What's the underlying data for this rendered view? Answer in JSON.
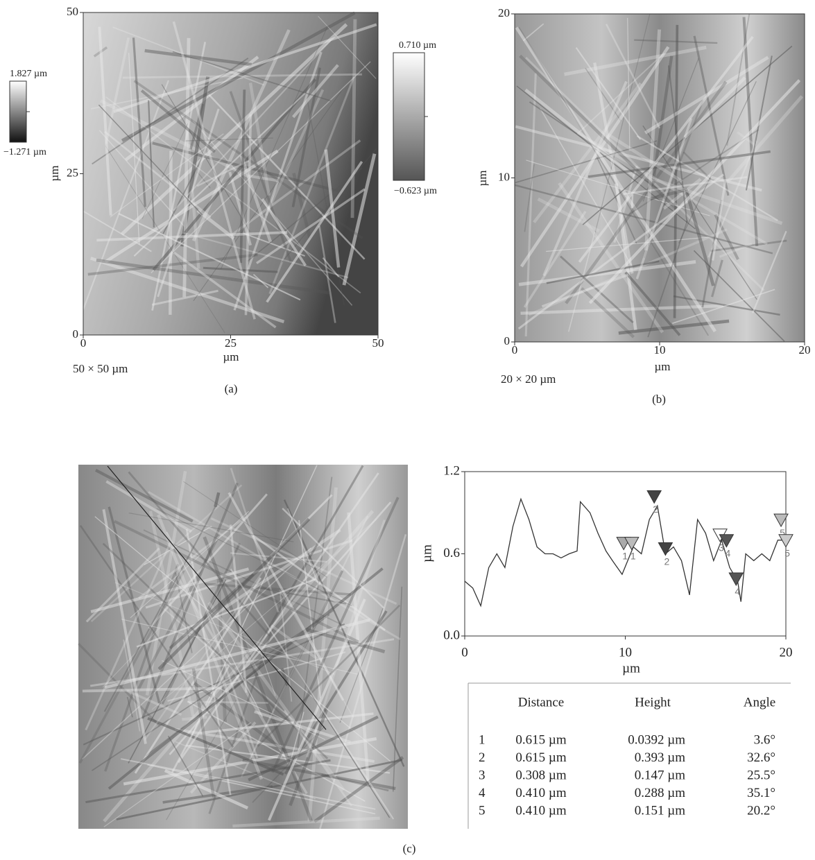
{
  "chart_data": [
    {
      "type": "image",
      "caption": "(a)",
      "scan_size": "50 × 50 µm",
      "xlabel": "µm",
      "ylabel": "µm",
      "xlim": [
        0,
        50
      ],
      "ylim": [
        0,
        50
      ],
      "xticks": [
        0,
        25,
        50
      ],
      "yticks": [
        0,
        25,
        50
      ],
      "colorbar_max": "1.827 µm",
      "colorbar_min": "−1.271 µm"
    },
    {
      "type": "image",
      "caption": "(b)",
      "scan_size": "20 × 20 µm",
      "xlabel": "µm",
      "ylabel": "µm",
      "xlim": [
        0,
        20
      ],
      "ylim": [
        0,
        20
      ],
      "xticks": [
        0,
        10,
        20
      ],
      "yticks": [
        0,
        10,
        20
      ],
      "colorbar_max": "0.710 µm",
      "colorbar_min": "−0.623 µm"
    },
    {
      "type": "line",
      "caption": "(c)",
      "xlabel": "µm",
      "ylabel": "µm",
      "color": "#333333",
      "xlim": [
        0,
        20
      ],
      "ylim": [
        0,
        1.2
      ],
      "xticks": [
        0,
        10,
        20
      ],
      "yticks": [
        {
          "value": 0,
          "label": "0.0"
        },
        0.6,
        {
          "value": 1.2,
          "label": "1.2"
        }
      ],
      "x": [
        0,
        0.5,
        1,
        1.5,
        2,
        2.5,
        3,
        3.5,
        4,
        4.5,
        5,
        5.5,
        6,
        6.5,
        7,
        7.2,
        7.8,
        8.3,
        8.8,
        9.2,
        9.8,
        10.5,
        11,
        11.5,
        12,
        12.5,
        13,
        13.5,
        14,
        14.5,
        15,
        15.5,
        16,
        16.5,
        17,
        17.2,
        17.5,
        18,
        18.5,
        19,
        19.5,
        20
      ],
      "values": [
        0.4,
        0.35,
        0.22,
        0.5,
        0.6,
        0.5,
        0.8,
        1.0,
        0.85,
        0.65,
        0.6,
        0.6,
        0.57,
        0.6,
        0.62,
        0.98,
        0.9,
        0.75,
        0.62,
        0.55,
        0.45,
        0.65,
        0.6,
        0.85,
        0.95,
        0.6,
        0.65,
        0.55,
        0.3,
        0.85,
        0.75,
        0.55,
        0.7,
        0.5,
        0.4,
        0.25,
        0.6,
        0.55,
        0.6,
        0.55,
        0.7,
        0.7
      ],
      "annotations": [
        {
          "text": "1",
          "x": 9.9,
          "y": 0.66,
          "color": "#aaaaaa"
        },
        {
          "text": "1",
          "x": 10.4,
          "y": 0.66,
          "color": "#bbbbbb"
        },
        {
          "text": "2",
          "x": 11.8,
          "y": 1.0,
          "color": "#444444"
        },
        {
          "text": "2",
          "x": 12.5,
          "y": 0.62,
          "color": "#444444"
        },
        {
          "text": "3",
          "x": 15.9,
          "y": 0.72,
          "color": "#ffffff"
        },
        {
          "text": "4",
          "x": 16.3,
          "y": 0.68,
          "color": "#555555"
        },
        {
          "text": "4",
          "x": 16.9,
          "y": 0.4,
          "color": "#555555"
        },
        {
          "text": "5",
          "x": 19.7,
          "y": 0.83,
          "color": "#bbbbbb"
        },
        {
          "text": "5",
          "x": 20,
          "y": 0.68,
          "color": "#cccccc"
        }
      ]
    }
  ],
  "table": {
    "columns": [
      "Distance",
      "Height",
      "Angle"
    ],
    "rows": [
      [
        "1",
        "0.615 µm",
        "0.0392 µm",
        "3.6°"
      ],
      [
        "2",
        "0.615 µm",
        "0.393 µm",
        "32.6°"
      ],
      [
        "3",
        "0.308 µm",
        "0.147 µm",
        "25.5°"
      ],
      [
        "4",
        "0.410 µm",
        "0.288 µm",
        "35.1°"
      ],
      [
        "5",
        "0.410 µm",
        "0.151 µm",
        "20.2°"
      ]
    ]
  }
}
